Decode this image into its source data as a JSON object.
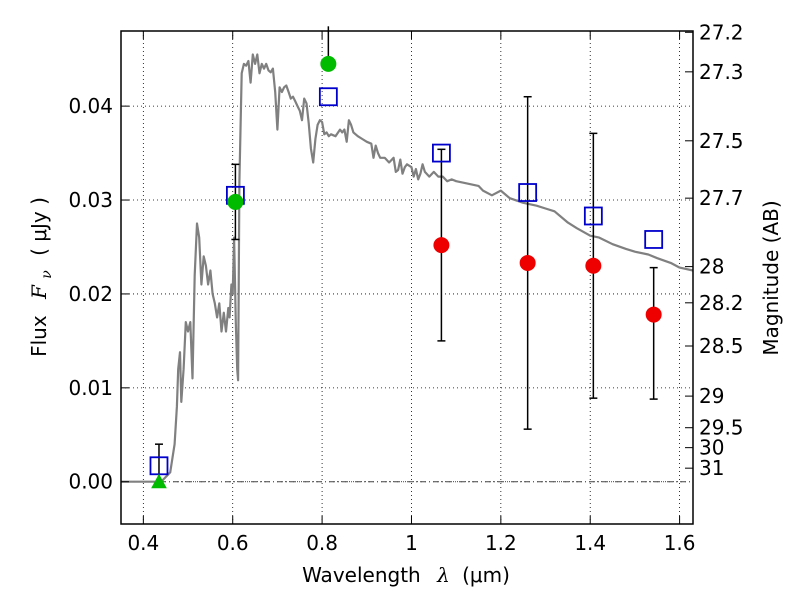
{
  "chart_data": {
    "type": "scatter",
    "xlabel_text": "Wavelength",
    "xlabel_symbol": "λ",
    "xlabel_unit": "(μm)",
    "ylabel_text": "Flux",
    "ylabel_symbol": "F",
    "ylabel_symbol_sub": "ν",
    "ylabel_unit": "( μJy )",
    "y2label": "Magnitude (AB)",
    "xlim": [
      0.35,
      1.63
    ],
    "ylim": [
      -0.0045,
      0.048
    ],
    "grid": true,
    "x_ticks": [
      {
        "value": 0.4,
        "label": "0.4"
      },
      {
        "value": 0.6,
        "label": "0.6"
      },
      {
        "value": 0.8,
        "label": "0.8"
      },
      {
        "value": 1.0,
        "label": "1"
      },
      {
        "value": 1.2,
        "label": "1.2"
      },
      {
        "value": 1.4,
        "label": "1.4"
      },
      {
        "value": 1.6,
        "label": "1.6"
      }
    ],
    "y_ticks": [
      {
        "value": 0.0,
        "label": "0.00"
      },
      {
        "value": 0.01,
        "label": "0.01"
      },
      {
        "value": 0.02,
        "label": "0.02"
      },
      {
        "value": 0.03,
        "label": "0.03"
      },
      {
        "value": 0.04,
        "label": "0.04"
      }
    ],
    "mag_ticks": [
      {
        "mag": 27.2,
        "label": "27.2"
      },
      {
        "mag": 27.3,
        "label": "27.3"
      },
      {
        "mag": 27.5,
        "label": "27.5"
      },
      {
        "mag": 27.7,
        "label": "27.7"
      },
      {
        "mag": 28,
        "label": "28"
      },
      {
        "mag": 28.2,
        "label": "28.2"
      },
      {
        "mag": 28.5,
        "label": "28.5"
      },
      {
        "mag": 29,
        "label": "29"
      },
      {
        "mag": 29.5,
        "label": "29.5"
      },
      {
        "mag": 30,
        "label": "30"
      },
      {
        "mag": 31,
        "label": "31"
      }
    ],
    "zero_line": 0.0,
    "sed_model": {
      "name": "model spectrum",
      "color": "#808080",
      "points": [
        [
          0.35,
          0.0
        ],
        [
          0.44,
          0.0
        ],
        [
          0.46,
          0.001
        ],
        [
          0.47,
          0.004
        ],
        [
          0.475,
          0.008
        ],
        [
          0.478,
          0.012
        ],
        [
          0.482,
          0.0138
        ],
        [
          0.485,
          0.0085
        ],
        [
          0.49,
          0.012
        ],
        [
          0.495,
          0.017
        ],
        [
          0.5,
          0.016
        ],
        [
          0.505,
          0.017
        ],
        [
          0.51,
          0.011
        ],
        [
          0.515,
          0.022
        ],
        [
          0.52,
          0.0275
        ],
        [
          0.525,
          0.026
        ],
        [
          0.53,
          0.021
        ],
        [
          0.535,
          0.024
        ],
        [
          0.54,
          0.023
        ],
        [
          0.545,
          0.021
        ],
        [
          0.55,
          0.0225
        ],
        [
          0.555,
          0.02
        ],
        [
          0.56,
          0.019
        ],
        [
          0.565,
          0.0175
        ],
        [
          0.57,
          0.019
        ],
        [
          0.575,
          0.016
        ],
        [
          0.58,
          0.018
        ],
        [
          0.585,
          0.016
        ],
        [
          0.59,
          0.0185
        ],
        [
          0.593,
          0.0175
        ],
        [
          0.597,
          0.021
        ],
        [
          0.6,
          0.02
        ],
        [
          0.603,
          0.026
        ],
        [
          0.607,
          0.017
        ],
        [
          0.61,
          0.012
        ],
        [
          0.612,
          0.0108
        ],
        [
          0.615,
          0.032
        ],
        [
          0.62,
          0.0435
        ],
        [
          0.625,
          0.0445
        ],
        [
          0.63,
          0.0443
        ],
        [
          0.635,
          0.0448
        ],
        [
          0.64,
          0.0425
        ],
        [
          0.645,
          0.0455
        ],
        [
          0.65,
          0.0445
        ],
        [
          0.655,
          0.0455
        ],
        [
          0.66,
          0.0435
        ],
        [
          0.665,
          0.0445
        ],
        [
          0.67,
          0.044
        ],
        [
          0.675,
          0.0445
        ],
        [
          0.68,
          0.0438
        ],
        [
          0.685,
          0.0436
        ],
        [
          0.69,
          0.044
        ],
        [
          0.695,
          0.0415
        ],
        [
          0.7,
          0.0375
        ],
        [
          0.705,
          0.042
        ],
        [
          0.71,
          0.0415
        ],
        [
          0.715,
          0.042
        ],
        [
          0.72,
          0.0422
        ],
        [
          0.725,
          0.0415
        ],
        [
          0.73,
          0.0408
        ],
        [
          0.735,
          0.041
        ],
        [
          0.74,
          0.0405
        ],
        [
          0.745,
          0.04
        ],
        [
          0.75,
          0.0395
        ],
        [
          0.755,
          0.0385
        ],
        [
          0.76,
          0.0408
        ],
        [
          0.765,
          0.0403
        ],
        [
          0.77,
          0.0382
        ],
        [
          0.775,
          0.0355
        ],
        [
          0.78,
          0.034
        ],
        [
          0.785,
          0.0365
        ],
        [
          0.79,
          0.038
        ],
        [
          0.795,
          0.0385
        ],
        [
          0.8,
          0.0383
        ],
        [
          0.805,
          0.037
        ],
        [
          0.81,
          0.0372
        ],
        [
          0.815,
          0.0368
        ],
        [
          0.82,
          0.037
        ],
        [
          0.83,
          0.0368
        ],
        [
          0.84,
          0.0375
        ],
        [
          0.845,
          0.0372
        ],
        [
          0.85,
          0.0375
        ],
        [
          0.855,
          0.0362
        ],
        [
          0.86,
          0.0385
        ],
        [
          0.865,
          0.038
        ],
        [
          0.87,
          0.0372
        ],
        [
          0.88,
          0.0368
        ],
        [
          0.89,
          0.0365
        ],
        [
          0.9,
          0.0362
        ],
        [
          0.91,
          0.036
        ],
        [
          0.915,
          0.0345
        ],
        [
          0.92,
          0.0358
        ],
        [
          0.925,
          0.035
        ],
        [
          0.93,
          0.0345
        ],
        [
          0.94,
          0.0345
        ],
        [
          0.95,
          0.034
        ],
        [
          0.96,
          0.0345
        ],
        [
          0.965,
          0.033
        ],
        [
          0.97,
          0.0332
        ],
        [
          0.975,
          0.0343
        ],
        [
          0.98,
          0.0328
        ],
        [
          0.985,
          0.0335
        ],
        [
          0.99,
          0.0338
        ],
        [
          1.0,
          0.0335
        ],
        [
          1.005,
          0.0325
        ],
        [
          1.01,
          0.0333
        ],
        [
          1.015,
          0.0322
        ],
        [
          1.02,
          0.0328
        ],
        [
          1.025,
          0.0338
        ],
        [
          1.03,
          0.033
        ],
        [
          1.04,
          0.0325
        ],
        [
          1.05,
          0.033
        ],
        [
          1.06,
          0.0325
        ],
        [
          1.07,
          0.0325
        ],
        [
          1.08,
          0.032
        ],
        [
          1.09,
          0.0322
        ],
        [
          1.1,
          0.032
        ],
        [
          1.12,
          0.0318
        ],
        [
          1.15,
          0.0315
        ],
        [
          1.16,
          0.031
        ],
        [
          1.18,
          0.0305
        ],
        [
          1.2,
          0.031
        ],
        [
          1.22,
          0.0302
        ],
        [
          1.25,
          0.0297
        ],
        [
          1.28,
          0.0294
        ],
        [
          1.3,
          0.0291
        ],
        [
          1.32,
          0.0288
        ],
        [
          1.35,
          0.0276
        ],
        [
          1.37,
          0.027
        ],
        [
          1.4,
          0.0262
        ],
        [
          1.42,
          0.026
        ],
        [
          1.45,
          0.0253
        ],
        [
          1.48,
          0.0248
        ],
        [
          1.5,
          0.0245
        ],
        [
          1.53,
          0.0242
        ],
        [
          1.55,
          0.0238
        ],
        [
          1.58,
          0.0233
        ],
        [
          1.6,
          0.0228
        ],
        [
          1.63,
          0.0225
        ]
      ]
    },
    "model_photometry": {
      "name": "model photometry",
      "color": "#0000cc",
      "points": [
        {
          "x": 0.435,
          "y": 0.0017
        },
        {
          "x": 0.606,
          "y": 0.0305
        },
        {
          "x": 0.814,
          "y": 0.041
        },
        {
          "x": 1.067,
          "y": 0.035
        },
        {
          "x": 1.26,
          "y": 0.0308
        },
        {
          "x": 1.407,
          "y": 0.0283
        },
        {
          "x": 1.542,
          "y": 0.0258
        }
      ]
    },
    "observed": [
      {
        "x": 0.435,
        "y": 0.0,
        "err_low": 0.0,
        "err_high": 0.004,
        "marker": "triangle",
        "color": "#00bb00"
      },
      {
        "x": 0.606,
        "y": 0.0298,
        "err_low": 0.004,
        "err_high": 0.004,
        "marker": "circle",
        "color": "#00bb00"
      },
      {
        "x": 0.814,
        "y": 0.0445,
        "err_low": 0.0,
        "err_high": 0.004,
        "marker": "circle",
        "color": "#00bb00"
      },
      {
        "x": 1.067,
        "y": 0.0252,
        "err_low": 0.0102,
        "err_high": 0.0102,
        "marker": "circle",
        "color": "#ee0000"
      },
      {
        "x": 1.26,
        "y": 0.0233,
        "err_low": 0.0177,
        "err_high": 0.0177,
        "marker": "circle",
        "color": "#ee0000"
      },
      {
        "x": 1.407,
        "y": 0.023,
        "err_low": 0.0141,
        "err_high": 0.0141,
        "marker": "circle",
        "color": "#ee0000"
      },
      {
        "x": 1.542,
        "y": 0.0178,
        "err_low": 0.009,
        "err_high": 0.005,
        "marker": "circle",
        "color": "#ee0000"
      }
    ]
  }
}
